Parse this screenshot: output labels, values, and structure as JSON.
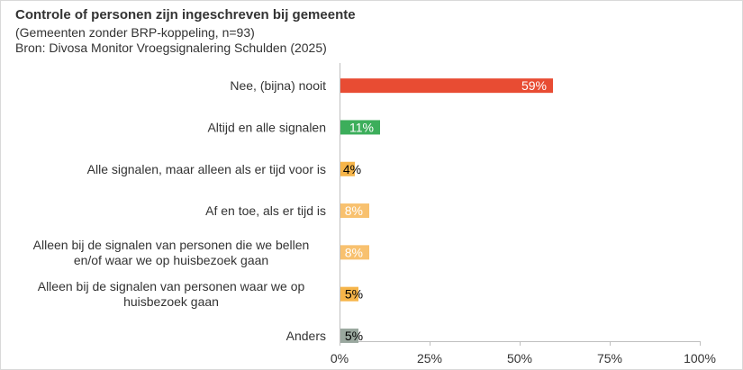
{
  "chart_data": {
    "type": "bar",
    "orientation": "horizontal",
    "title": "Controle of personen zijn ingeschreven bij gemeente",
    "subtitle": "(Gemeenten zonder BRP-koppeling, n=93)",
    "source": "Bron: Divosa Monitor Vroegsignalering Schulden (2025)",
    "categories": [
      [
        "Nee, (bijna) nooit"
      ],
      [
        "Altijd en alle signalen"
      ],
      [
        "Alle signalen, maar alleen als er tijd voor is"
      ],
      [
        "Af en toe, als er tijd is"
      ],
      [
        "Alleen bij de signalen van personen die we bellen",
        "en/of waar we op huisbezoek gaan"
      ],
      [
        "Alleen bij de signalen van personen waar we op",
        "huisbezoek gaan"
      ],
      [
        "Anders"
      ]
    ],
    "values": [
      59,
      11,
      4,
      8,
      8,
      5,
      5
    ],
    "labels": [
      "59%",
      "11%",
      "4%",
      "8%",
      "8%",
      "5%",
      "5%"
    ],
    "colors": [
      "#e84c33",
      "#3cae5b",
      "#f6b54a",
      "#f8c16f",
      "#f8c16f",
      "#f6b54a",
      "#9aa89f"
    ],
    "xlim": [
      0,
      100
    ],
    "xticks": [
      "0%",
      "25%",
      "50%",
      "75%",
      "100%"
    ],
    "axis_color": "#bfbfbf"
  }
}
